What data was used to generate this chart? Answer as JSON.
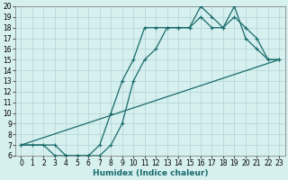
{
  "xlabel": "Humidex (Indice chaleur)",
  "bg_color": "#d6efef",
  "grid_color": "#b8d8d8",
  "line_color": "#1a6b6b",
  "xlim": [
    -0.5,
    23.5
  ],
  "ylim": [
    6,
    20
  ],
  "xticks": [
    0,
    1,
    2,
    3,
    4,
    5,
    6,
    7,
    8,
    9,
    10,
    11,
    12,
    13,
    14,
    15,
    16,
    17,
    18,
    19,
    20,
    21,
    22,
    23
  ],
  "yticks": [
    6,
    7,
    8,
    9,
    10,
    11,
    12,
    13,
    14,
    15,
    16,
    17,
    18,
    19,
    20
  ],
  "line1_x": [
    0,
    1,
    2,
    3,
    4,
    5,
    6,
    7,
    8,
    9,
    10,
    11,
    12,
    13,
    14,
    15,
    16,
    17,
    18,
    19,
    20,
    21,
    22,
    23
  ],
  "line1_y": [
    7,
    7,
    7,
    6,
    6,
    6,
    6,
    6,
    7,
    9,
    13,
    15,
    16,
    18,
    18,
    18,
    20,
    19,
    18,
    20,
    17,
    16,
    15,
    15
  ],
  "line2_x": [
    0,
    3,
    4,
    5,
    6,
    7,
    8,
    9,
    10,
    11,
    12,
    13,
    14,
    15,
    16,
    17,
    18,
    19,
    20,
    21,
    22,
    23
  ],
  "line2_y": [
    7,
    7,
    6,
    6,
    6,
    7,
    10,
    13,
    15,
    18,
    18,
    18,
    18,
    18,
    19,
    18,
    18,
    19,
    18,
    17,
    15,
    15
  ],
  "line3_x": [
    0,
    23
  ],
  "line3_y": [
    7,
    15
  ],
  "tick_fontsize": 5.5,
  "xlabel_fontsize": 6.5
}
